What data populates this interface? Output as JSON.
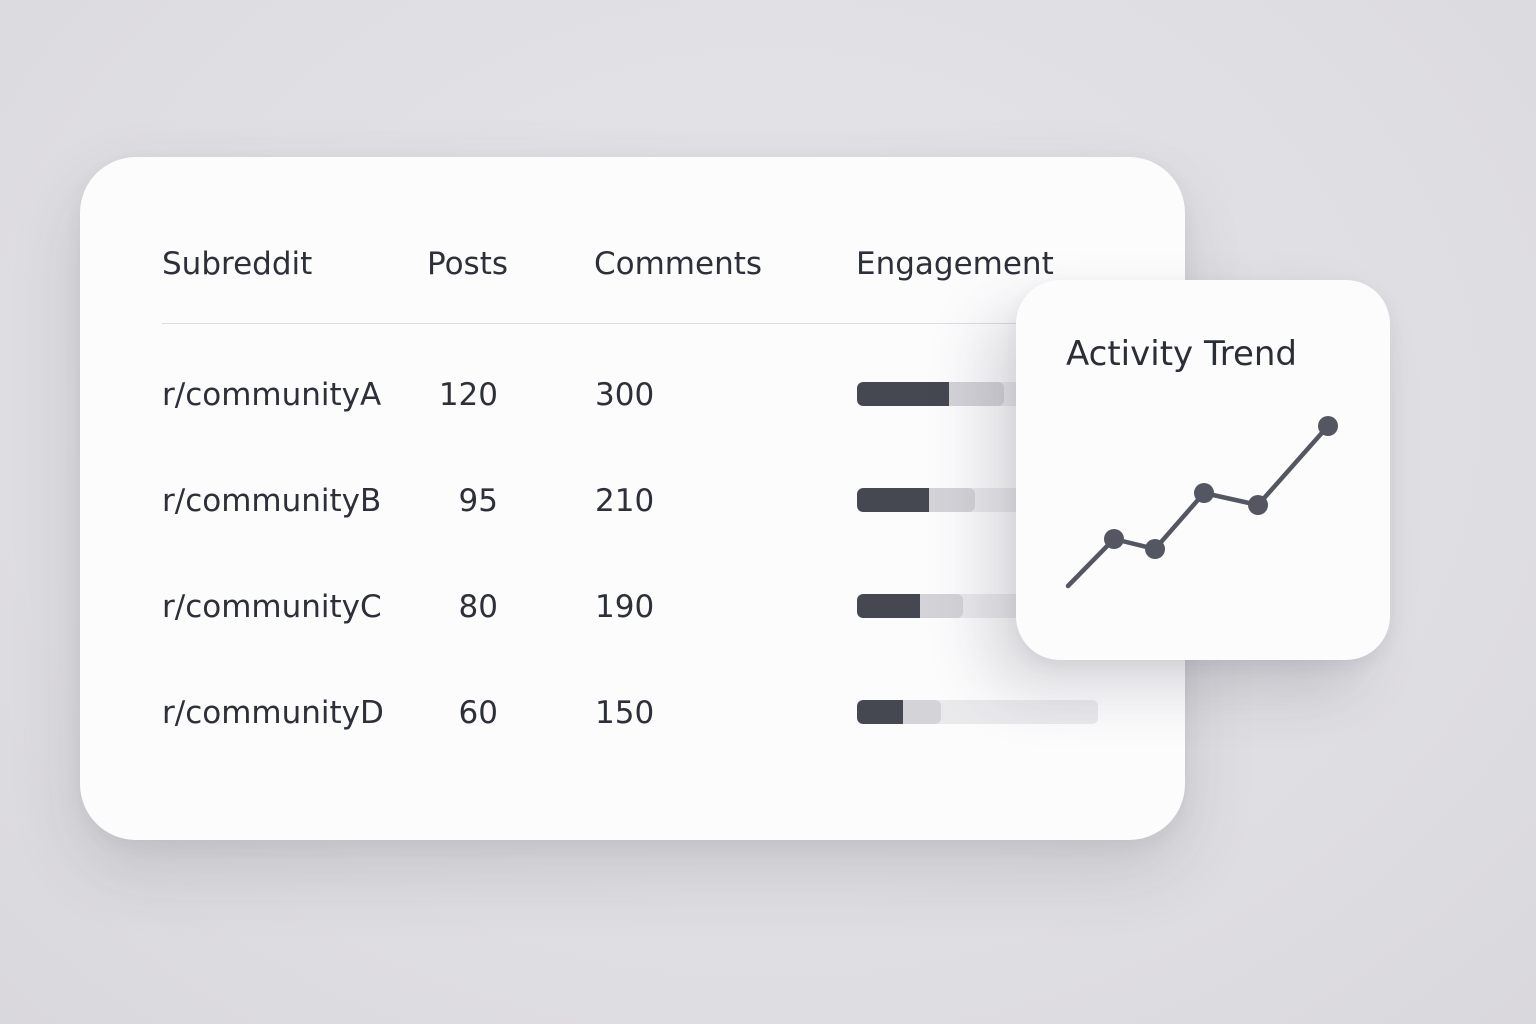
{
  "table": {
    "headers": {
      "subreddit": "Subreddit",
      "posts": "Posts",
      "comments": "Comments",
      "engagement": "Engagement"
    },
    "rows": [
      {
        "subreddit": "r/communityA",
        "posts": "120",
        "comments": "300",
        "engagement_dark": 0.38,
        "engagement_light": 0.61
      },
      {
        "subreddit": "r/communityB",
        "posts": "95",
        "comments": "210",
        "engagement_dark": 0.3,
        "engagement_light": 0.49
      },
      {
        "subreddit": "r/communityC",
        "posts": "80",
        "comments": "190",
        "engagement_dark": 0.26,
        "engagement_light": 0.44
      },
      {
        "subreddit": "r/communityD",
        "posts": "60",
        "comments": "150",
        "engagement_dark": 0.19,
        "engagement_light": 0.35
      }
    ]
  },
  "trend": {
    "title": "Activity Trend"
  },
  "colors": {
    "bar_dark": "#454851",
    "bar_mid": "#d3d3d8",
    "bar_track": "#eaeaed",
    "line": "#545762"
  }
}
